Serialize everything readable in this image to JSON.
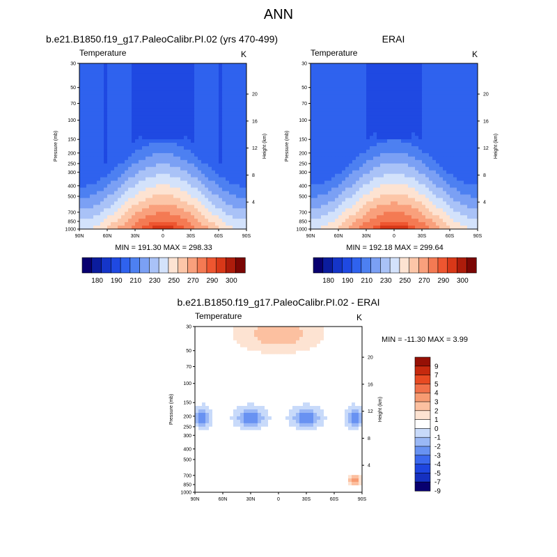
{
  "figure": {
    "title": "ANN",
    "colors": {
      "abs_palette": [
        "#08006f",
        "#0b1c9d",
        "#1535c8",
        "#1f49e2",
        "#2f62ee",
        "#4d80f1",
        "#7ba0f4",
        "#a9c2f7",
        "#d3e2fb",
        "#fde3d2",
        "#fcc6a8",
        "#f9a07c",
        "#f47a53",
        "#ee5630",
        "#d83818",
        "#ad1c0b",
        "#7a0604"
      ],
      "diff_palette": [
        "#08006f",
        "#1530c0",
        "#1e45e0",
        "#3b68ee",
        "#6892f2",
        "#9ab8f6",
        "#c8dafa",
        "#ffffff",
        "#fde3d2",
        "#fcc0a0",
        "#f79b72",
        "#f1714a",
        "#e84a22",
        "#c6290e",
        "#961005"
      ]
    }
  },
  "chart_data": [
    {
      "type": "heatmap",
      "panel": "model",
      "title": "b.e21.B1850.f19_g17.PaleoCalibr.PI.02 (yrs 470-499)",
      "variable": "Temperature",
      "units": "K",
      "ylabel": "Pressure (mb)",
      "ylabel_right": "Height (km)",
      "x_ticks": [
        "90N",
        "60N",
        "30N",
        "0",
        "30S",
        "60S",
        "90S"
      ],
      "y_ticks": [
        30,
        50,
        70,
        100,
        150,
        200,
        250,
        300,
        400,
        500,
        700,
        850,
        1000
      ],
      "y_right_ticks": [
        20,
        16,
        12,
        8,
        4
      ],
      "ylim": [
        1000,
        30
      ],
      "min_text": "MIN = 191.30   MAX = 298.33",
      "min": 191.3,
      "max": 298.33,
      "colorbar": {
        "levels": [
          180,
          185,
          190,
          200,
          210,
          220,
          230,
          240,
          250,
          260,
          270,
          280,
          290,
          295,
          300
        ],
        "labels": [
          "180",
          "190",
          "210",
          "230",
          "250",
          "270",
          "290",
          "300"
        ]
      }
    },
    {
      "type": "heatmap",
      "panel": "obs",
      "title": "ERAI",
      "variable": "Temperature",
      "units": "K",
      "ylabel": "Pressure (mb)",
      "ylabel_right": "Height (km)",
      "x_ticks": [
        "90N",
        "60N",
        "30N",
        "0",
        "30S",
        "60S",
        "90S"
      ],
      "y_ticks": [
        30,
        50,
        70,
        100,
        150,
        200,
        250,
        300,
        400,
        500,
        700,
        850,
        1000
      ],
      "y_right_ticks": [
        20,
        16,
        12,
        8,
        4
      ],
      "ylim": [
        1000,
        30
      ],
      "min_text": "MIN = 192.18   MAX = 299.64",
      "min": 192.18,
      "max": 299.64,
      "colorbar": {
        "levels": [
          180,
          185,
          190,
          200,
          210,
          220,
          230,
          240,
          250,
          260,
          270,
          280,
          290,
          295,
          300
        ],
        "labels": [
          "180",
          "190",
          "210",
          "230",
          "250",
          "270",
          "290",
          "300"
        ]
      }
    },
    {
      "type": "heatmap",
      "panel": "difference",
      "title": "b.e21.B1850.f19_g17.PaleoCalibr.PI.02 - ERAI",
      "variable": "Temperature",
      "units": "K",
      "ylabel": "Pressure (mb)",
      "ylabel_right": "Height (km)",
      "x_ticks": [
        "90N",
        "60N",
        "30N",
        "0",
        "30S",
        "60S",
        "90S"
      ],
      "y_ticks": [
        30,
        50,
        70,
        100,
        150,
        200,
        250,
        300,
        400,
        500,
        700,
        850,
        1000
      ],
      "y_right_ticks": [
        20,
        16,
        12,
        8,
        4
      ],
      "ylim": [
        1000,
        30
      ],
      "min_text": "MIN = -11.30   MAX =    3.99",
      "min": -11.3,
      "max": 3.99,
      "colorbar": {
        "levels": [
          -9,
          -7,
          -5,
          -4,
          -3,
          -2,
          -1,
          0,
          1,
          2,
          3,
          4,
          5,
          7,
          9
        ],
        "labels": [
          "9",
          "7",
          "5",
          "4",
          "3",
          "2",
          "1",
          "0",
          "-1",
          "-2",
          "-3",
          "-4",
          "-5",
          "-7",
          "-9"
        ]
      }
    }
  ]
}
